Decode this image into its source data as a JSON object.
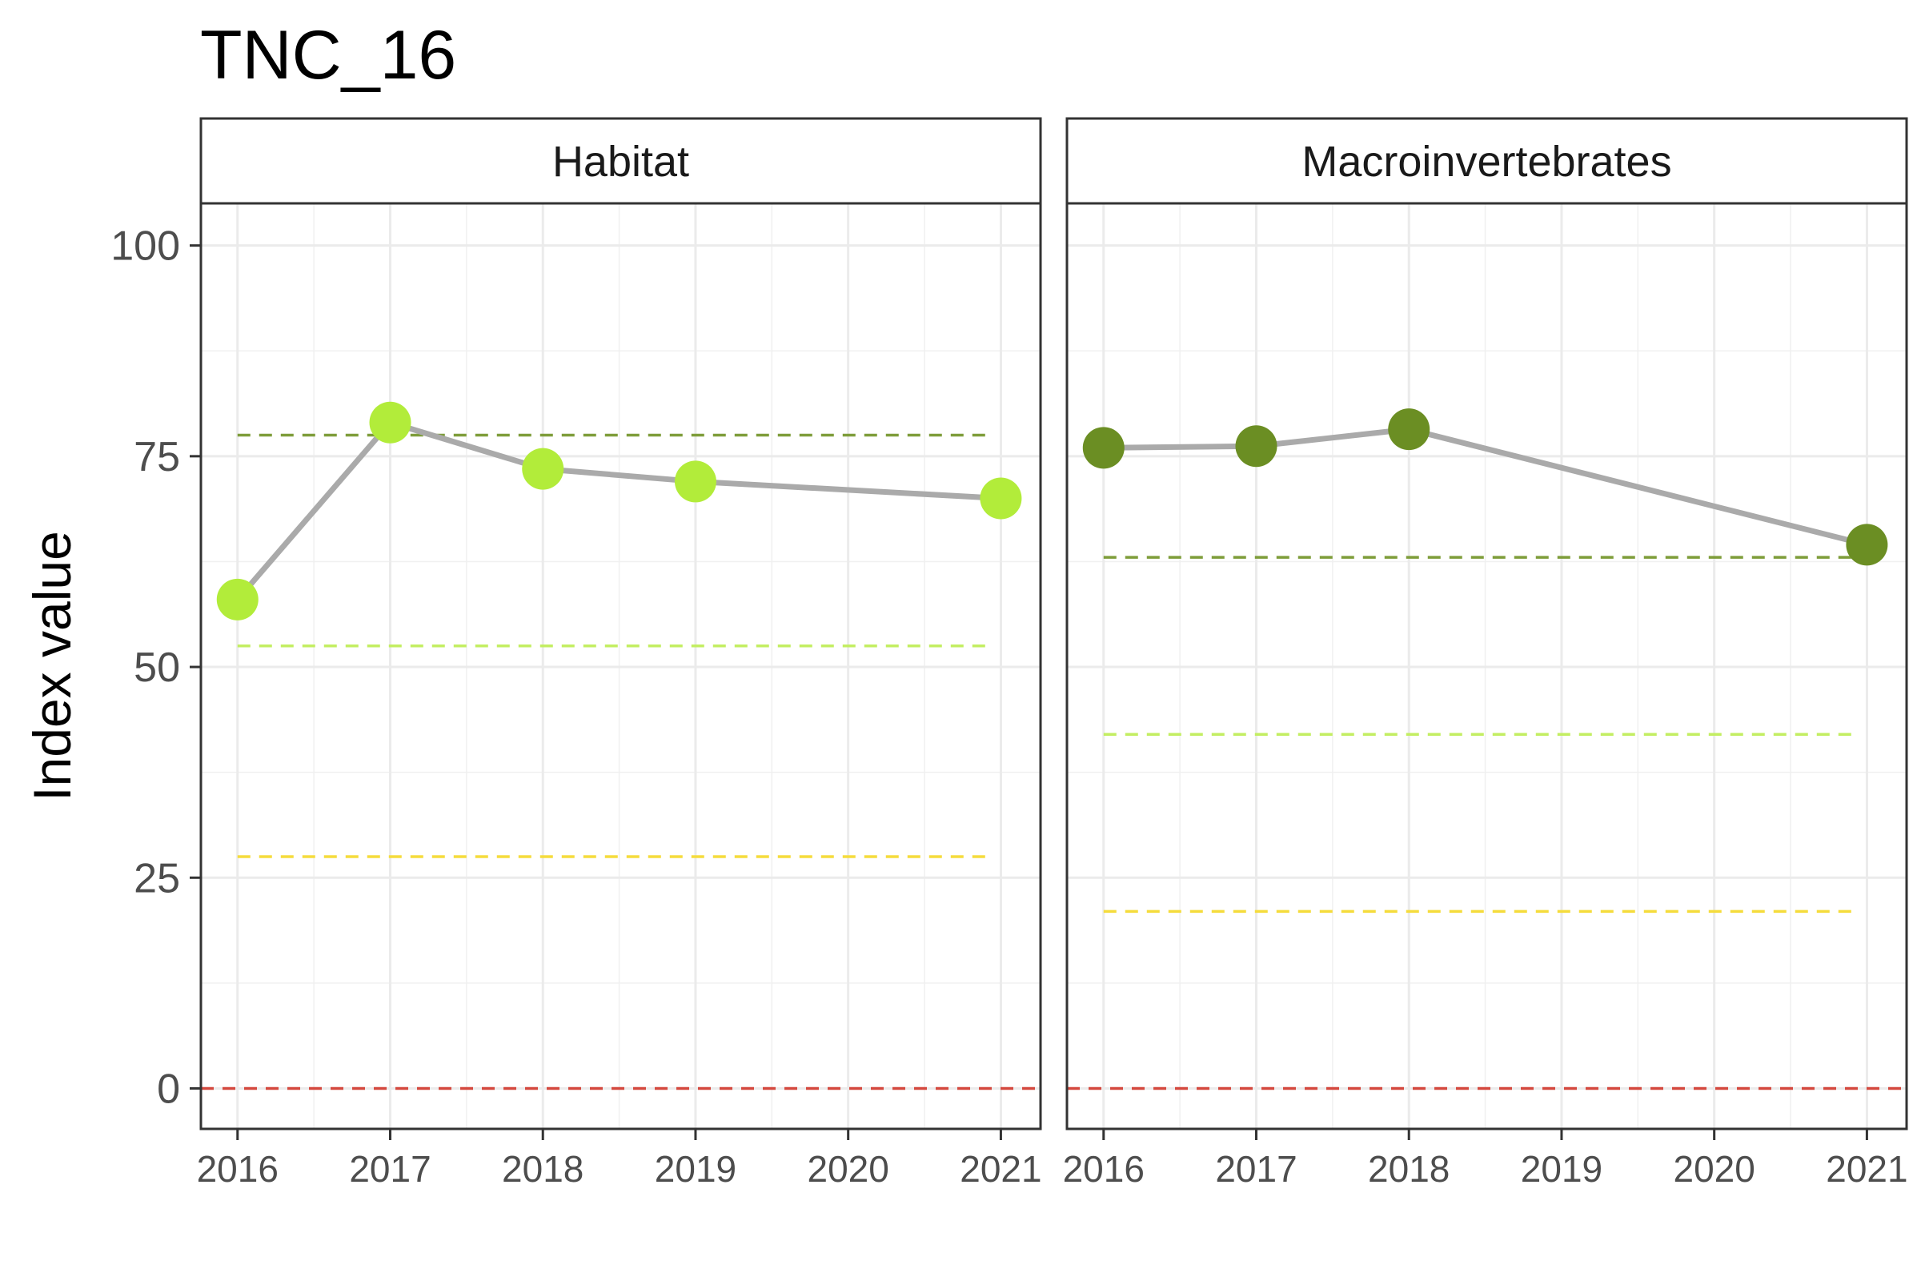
{
  "chart_data": {
    "type": "line",
    "title": "TNC_16",
    "ylabel": "Index value",
    "xlabel": "",
    "ylim": [
      -4.8,
      105
    ],
    "yticks": [
      0,
      25,
      50,
      75,
      100
    ],
    "xlim": [
      2015.76,
      2021.26
    ],
    "xticks": [
      2016,
      2017,
      2018,
      2019,
      2020,
      2021
    ],
    "grid": true,
    "line_color": "#aaaaaa",
    "panels": [
      {
        "label": "Habitat",
        "point_color": "#b2ec3a",
        "x": [
          2016,
          2017,
          2018,
          2019,
          2021
        ],
        "y": [
          58,
          79,
          73.5,
          72,
          70
        ],
        "thresholds": [
          {
            "y": 77.5,
            "color": "#7e9d3a"
          },
          {
            "y": 52.5,
            "color": "#c3ee62"
          },
          {
            "y": 27.5,
            "color": "#f5dc3c"
          },
          {
            "y": 0,
            "color": "#d4483e"
          }
        ]
      },
      {
        "label": "Macroinvertebrates",
        "point_color": "#6b8e23",
        "x": [
          2016,
          2017,
          2018,
          2021
        ],
        "y": [
          76,
          76.2,
          78.2,
          64.5
        ],
        "thresholds": [
          {
            "y": 63,
            "color": "#7e9d3a"
          },
          {
            "y": 42,
            "color": "#c3ee62"
          },
          {
            "y": 21,
            "color": "#f5dc3c"
          },
          {
            "y": 0,
            "color": "#d4483e"
          }
        ]
      }
    ]
  }
}
